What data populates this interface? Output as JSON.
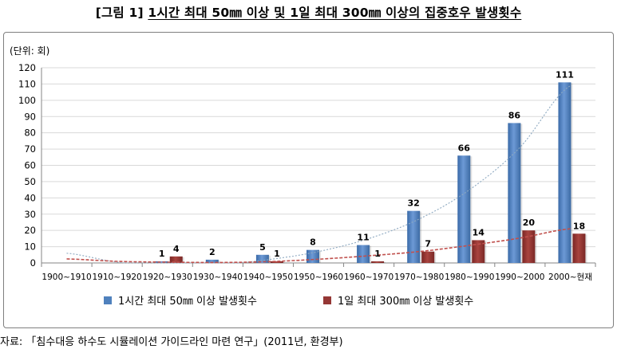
{
  "title": {
    "tag": "[그림 1]",
    "main": "1시간 최대 50㎜ 이상 및 1일 최대 300㎜ 이상의 집중호우 발생횟수"
  },
  "source": "자료: 「침수대응 하수도 시뮬레이션 가이드라인 마련 연구」(2011년, 환경부)",
  "chart_data": {
    "type": "bar",
    "unit_label": "(단위: 회)",
    "categories": [
      "1900~1910",
      "1910~1920",
      "1920~1930",
      "1930~1940",
      "1940~1950",
      "1950~1960",
      "1960~1970",
      "1970~1980",
      "1980~1990",
      "1990~2000",
      "2000~현재"
    ],
    "series": [
      {
        "name": "1시간 최대 50㎜ 이상 발생횟수",
        "color": "#4f81bd",
        "values": [
          0,
          0,
          1,
          2,
          5,
          8,
          11,
          32,
          66,
          86,
          111
        ],
        "labels": [
          "",
          "",
          "1",
          "2",
          "5",
          "8",
          "11",
          "32",
          "66",
          "86",
          "111"
        ]
      },
      {
        "name": "1일 최대 300㎜ 이상 발생횟수",
        "color": "#953735",
        "values": [
          0,
          0,
          4,
          0,
          1,
          0,
          1,
          7,
          14,
          20,
          18
        ],
        "labels": [
          "",
          "",
          "4",
          "",
          "1",
          "",
          "1",
          "7",
          "14",
          "20",
          "18"
        ]
      }
    ],
    "trendlines": [
      {
        "series": 0,
        "style": "dotted",
        "color": "#8ea9c1",
        "values": [
          6,
          0.5,
          -1.8,
          -1,
          2,
          7,
          15,
          27,
          45,
          71,
          109
        ]
      },
      {
        "series": 1,
        "style": "dashed",
        "color": "#c0504d",
        "values": [
          2.5,
          1,
          0.5,
          0.3,
          0.8,
          2.3,
          4.4,
          7,
          10.8,
          15.3,
          21
        ]
      }
    ],
    "ylim": [
      0,
      120
    ],
    "yticks": [
      0,
      10,
      20,
      30,
      40,
      50,
      60,
      70,
      80,
      90,
      100,
      110,
      120
    ],
    "grid": true,
    "legend": "bottom"
  }
}
